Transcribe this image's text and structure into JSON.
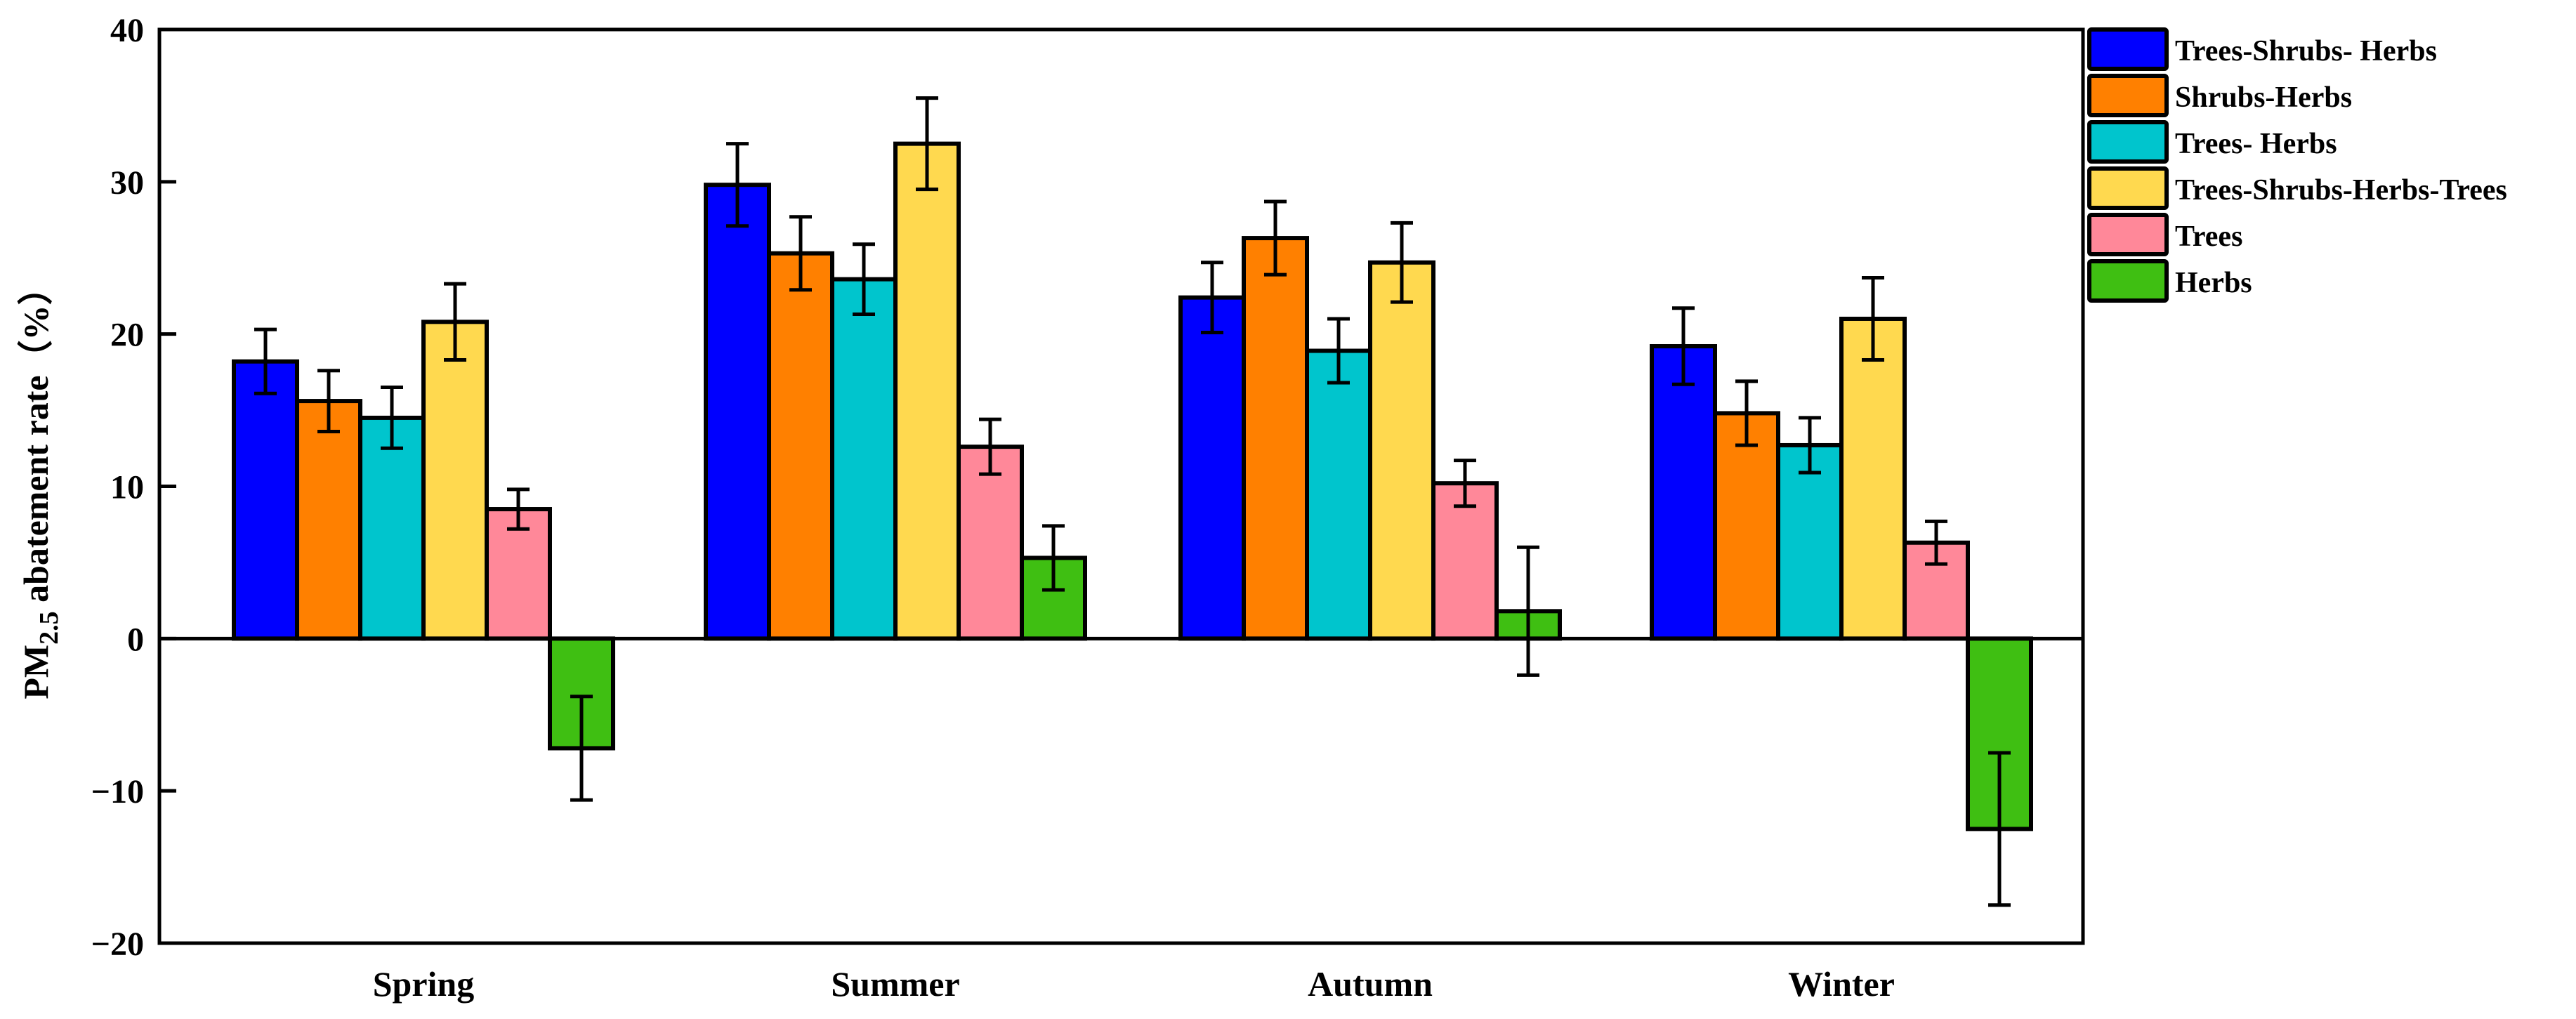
{
  "chart_data": {
    "type": "bar",
    "ylabel_main": "PM",
    "ylabel_sub": "2.5",
    "ylabel_rest": " abatement rate（%）",
    "ylim": [
      -20,
      40
    ],
    "yticks": [
      -20,
      -10,
      0,
      10,
      20,
      30,
      40
    ],
    "grid": false,
    "legend_placement": "right",
    "categories": [
      "Spring",
      "Summer",
      "Autumn",
      "Winter"
    ],
    "series": [
      {
        "name": "Trees-Shrubs- Herbs",
        "color": "#0000FF",
        "values": [
          18.2,
          29.8,
          22.4,
          19.2
        ],
        "errors": [
          2.1,
          2.7,
          2.3,
          2.5
        ]
      },
      {
        "name": "Shrubs-Herbs",
        "color": "#FF8000",
        "values": [
          15.6,
          25.3,
          26.3,
          14.8
        ],
        "errors": [
          2.0,
          2.4,
          2.4,
          2.1
        ]
      },
      {
        "name": "Trees- Herbs",
        "color": "#00C5CD",
        "values": [
          14.5,
          23.6,
          18.9,
          12.7
        ],
        "errors": [
          2.0,
          2.3,
          2.1,
          1.8
        ]
      },
      {
        "name": "Trees-Shrubs-Herbs-Trees",
        "color": "#FFD94F",
        "values": [
          20.8,
          32.5,
          24.7,
          21.0
        ],
        "errors": [
          2.5,
          3.0,
          2.6,
          2.7
        ]
      },
      {
        "name": "Trees",
        "color": "#FF8899",
        "values": [
          8.5,
          12.6,
          10.2,
          6.3
        ],
        "errors": [
          1.3,
          1.8,
          1.5,
          1.4
        ]
      },
      {
        "name": "Herbs",
        "color": "#3FBF12",
        "values": [
          -7.2,
          5.3,
          1.8,
          -12.5
        ],
        "errors": [
          3.4,
          2.1,
          4.2,
          5.0
        ]
      }
    ]
  }
}
